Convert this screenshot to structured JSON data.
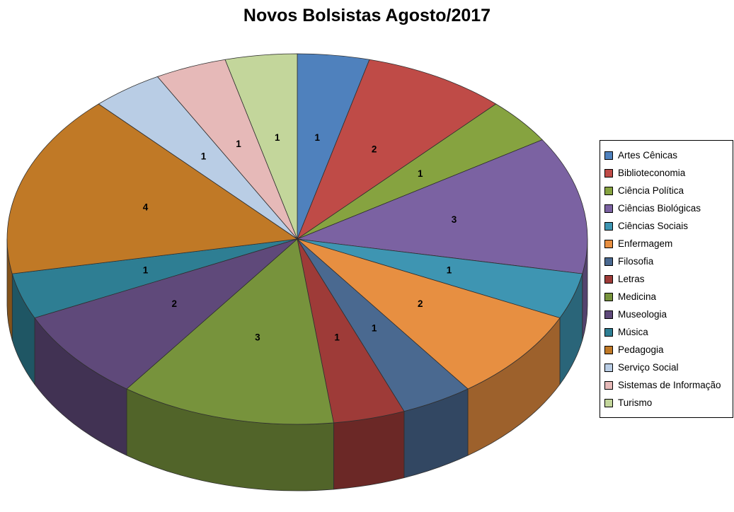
{
  "page": {
    "background_color": "#FFFFFF"
  },
  "chart_data": {
    "type": "pie",
    "effect": "3d",
    "title": "Novos Bolsistas Agosto/2017",
    "legend_position": "right",
    "data_labels": "values",
    "total": 25,
    "label_color": "#000000",
    "legend_border_color": "#000000",
    "categories": [
      "Artes Cênicas",
      "Biblioteconomia",
      "Ciência Política",
      "Ciências Biológicas",
      "Ciências Sociais",
      "Enfermagem",
      "Filosofia",
      "Letras",
      "Medicina",
      "Museologia",
      "Música",
      "Pedagogia",
      "Serviço Social",
      "Sistemas de Informação",
      "Turismo"
    ],
    "values": [
      1,
      2,
      1,
      3,
      1,
      2,
      1,
      1,
      3,
      2,
      1,
      4,
      1,
      1,
      1
    ],
    "colors": [
      "#4F81BD",
      "#BF4B47",
      "#86A340",
      "#7B62A2",
      "#3E95B2",
      "#E78F41",
      "#4A6990",
      "#9E3B38",
      "#77933C",
      "#5F497A",
      "#2E7E93",
      "#C07926",
      "#B9CDE5",
      "#E6B9B8",
      "#C3D69B"
    ]
  }
}
